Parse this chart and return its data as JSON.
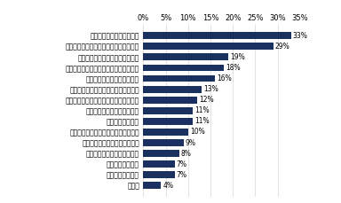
{
  "categories": [
    "その他",
    "困った経験はない",
    "部下が異性である",
    "効果的なほめ方がわからない",
    "部下の能力レベルがわからない",
    "コミュニケーションが上手にとれない",
    "部下が年上である",
    "部下のやる気を引き出せない",
    "ミスを恐れて部下に仕事を任せられない",
    "自分自身の知識・経験が不足している",
    "効果的な叱り方がわからない",
    "会社が求める人物像が定義されていない",
    "部下のキャリアパスが明確でない",
    "自分目身が忙しく、育成する余裕がない",
    "仕事に対する価値観が違う"
  ],
  "values": [
    4,
    7,
    7,
    8,
    9,
    10,
    11,
    11,
    12,
    13,
    16,
    18,
    19,
    29,
    33
  ],
  "bar_color": "#1a3060",
  "background_color": "#ffffff",
  "xlim": [
    0,
    35
  ],
  "xticks": [
    0,
    5,
    10,
    15,
    20,
    25,
    30,
    35
  ],
  "xtick_labels": [
    "0%",
    "5%",
    "10%",
    "15%",
    "20%",
    "25%",
    "30%",
    "35%"
  ],
  "bar_height": 0.65,
  "value_fontsize": 5.5,
  "label_fontsize": 5.5,
  "tick_fontsize": 6.0
}
